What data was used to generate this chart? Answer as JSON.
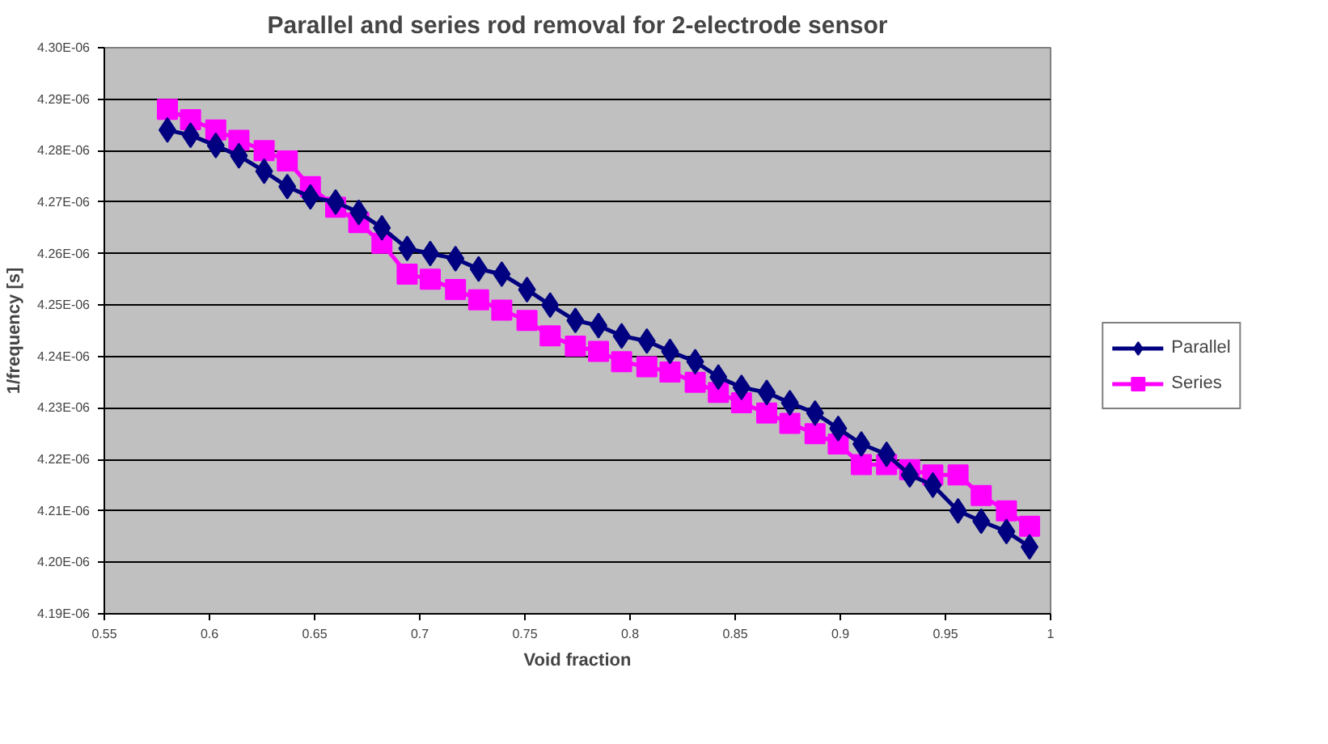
{
  "chart_data": {
    "type": "line",
    "title": "Parallel and series rod removal for 2-electrode sensor",
    "xlabel": "Void fraction",
    "ylabel": "1/frequency [s]",
    "x": [
      0.58,
      0.591,
      0.603,
      0.614,
      0.626,
      0.637,
      0.648,
      0.66,
      0.671,
      0.682,
      0.694,
      0.705,
      0.717,
      0.728,
      0.739,
      0.751,
      0.762,
      0.774,
      0.785,
      0.796,
      0.808,
      0.819,
      0.831,
      0.842,
      0.853,
      0.865,
      0.876,
      0.888,
      0.899,
      0.91,
      0.922,
      0.933,
      0.944,
      0.956,
      0.967,
      0.979,
      0.99
    ],
    "series": [
      {
        "name": "Parallel",
        "color": "#000080",
        "values": [
          4.284e-06,
          4.283e-06,
          4.281e-06,
          4.279e-06,
          4.276e-06,
          4.273e-06,
          4.271e-06,
          4.27e-06,
          4.268e-06,
          4.265e-06,
          4.261e-06,
          4.26e-06,
          4.259e-06,
          4.257e-06,
          4.256e-06,
          4.253e-06,
          4.25e-06,
          4.247e-06,
          4.246e-06,
          4.244e-06,
          4.243e-06,
          4.241e-06,
          4.239e-06,
          4.236e-06,
          4.234e-06,
          4.233e-06,
          4.231e-06,
          4.229e-06,
          4.226e-06,
          4.223e-06,
          4.221e-06,
          4.217e-06,
          4.215e-06,
          4.21e-06,
          4.208e-06,
          4.206e-06,
          4.203e-06
        ]
      },
      {
        "name": "Series",
        "color": "#ff00ff",
        "marker": "square",
        "values": [
          4.288e-06,
          4.286e-06,
          4.284e-06,
          4.282e-06,
          4.28e-06,
          4.278e-06,
          4.273e-06,
          4.269e-06,
          4.266e-06,
          4.262e-06,
          4.256e-06,
          4.255e-06,
          4.253e-06,
          4.251e-06,
          4.249e-06,
          4.247e-06,
          4.244e-06,
          4.242e-06,
          4.241e-06,
          4.239e-06,
          4.238e-06,
          4.237e-06,
          4.235e-06,
          4.233e-06,
          4.231e-06,
          4.229e-06,
          4.227e-06,
          4.225e-06,
          4.223e-06,
          4.219e-06,
          4.219e-06,
          4.218e-06,
          4.217e-06,
          4.217e-06,
          4.213e-06,
          4.21e-06,
          4.207e-06
        ]
      }
    ],
    "xlim": [
      0.55,
      1
    ],
    "xticks": [
      0.55,
      0.6,
      0.65,
      0.7,
      0.75,
      0.8,
      0.85,
      0.9,
      0.95,
      1
    ],
    "ylim": [
      4.19e-06,
      4.3e-06
    ],
    "yticks": [
      {
        "value": 4.19e-06,
        "label": "4.19E-06"
      },
      {
        "value": 4.2e-06,
        "label": "4.20E-06"
      },
      {
        "value": 4.21e-06,
        "label": "4.21E-06"
      },
      {
        "value": 4.22e-06,
        "label": "4.22E-06"
      },
      {
        "value": 4.23e-06,
        "label": "4.23E-06"
      },
      {
        "value": 4.24e-06,
        "label": "4.24E-06"
      },
      {
        "value": 4.25e-06,
        "label": "4.25E-06"
      },
      {
        "value": 4.26e-06,
        "label": "4.26E-06"
      },
      {
        "value": 4.27e-06,
        "label": "4.27E-06"
      },
      {
        "value": 4.28e-06,
        "label": "4.28E-06"
      },
      {
        "value": 4.29e-06,
        "label": "4.29E-06"
      },
      {
        "value": 4.3e-06,
        "label": "4.30E-06"
      }
    ],
    "grid": "y",
    "legend": "right",
    "line_style": "solid",
    "marker": "diamond"
  }
}
